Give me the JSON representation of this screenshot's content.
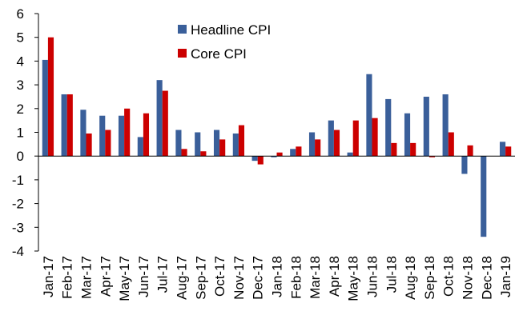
{
  "chart_data": {
    "type": "bar",
    "categories": [
      "Jan-17",
      "Feb-17",
      "Mar-17",
      "Apr-17",
      "May-17",
      "Jun-17",
      "Jul-17",
      "Aug-17",
      "Sep-17",
      "Oct-17",
      "Nov-17",
      "Dec-17",
      "Jan-18",
      "Feb-18",
      "Mar-18",
      "Apr-18",
      "May-18",
      "Jun-18",
      "Jul-18",
      "Aug-18",
      "Sep-18",
      "Oct-18",
      "Nov-18",
      "Dec-18",
      "Jan-19"
    ],
    "series": [
      {
        "name": "Headline CPI",
        "color": "#3a5f9a",
        "values": [
          4.05,
          2.6,
          1.95,
          1.7,
          1.7,
          0.8,
          3.2,
          1.1,
          1.0,
          1.1,
          0.95,
          -0.2,
          -0.05,
          0.3,
          1.0,
          1.5,
          0.15,
          3.45,
          2.4,
          1.8,
          2.5,
          2.6,
          -0.75,
          -3.4,
          0.6
        ]
      },
      {
        "name": "Core CPI",
        "color": "#cc0000",
        "values": [
          5.0,
          2.6,
          0.95,
          1.1,
          2.0,
          1.8,
          2.75,
          0.3,
          0.2,
          0.7,
          1.3,
          -0.35,
          0.15,
          0.4,
          0.7,
          1.1,
          1.5,
          1.6,
          0.55,
          0.55,
          -0.05,
          1.0,
          0.45,
          0,
          0.4
        ]
      }
    ],
    "ylim": [
      -4,
      6
    ],
    "yticks": [
      -4,
      -3,
      -2,
      -1,
      0,
      1,
      2,
      3,
      4,
      5,
      6
    ],
    "grid": false,
    "legend": "top"
  }
}
